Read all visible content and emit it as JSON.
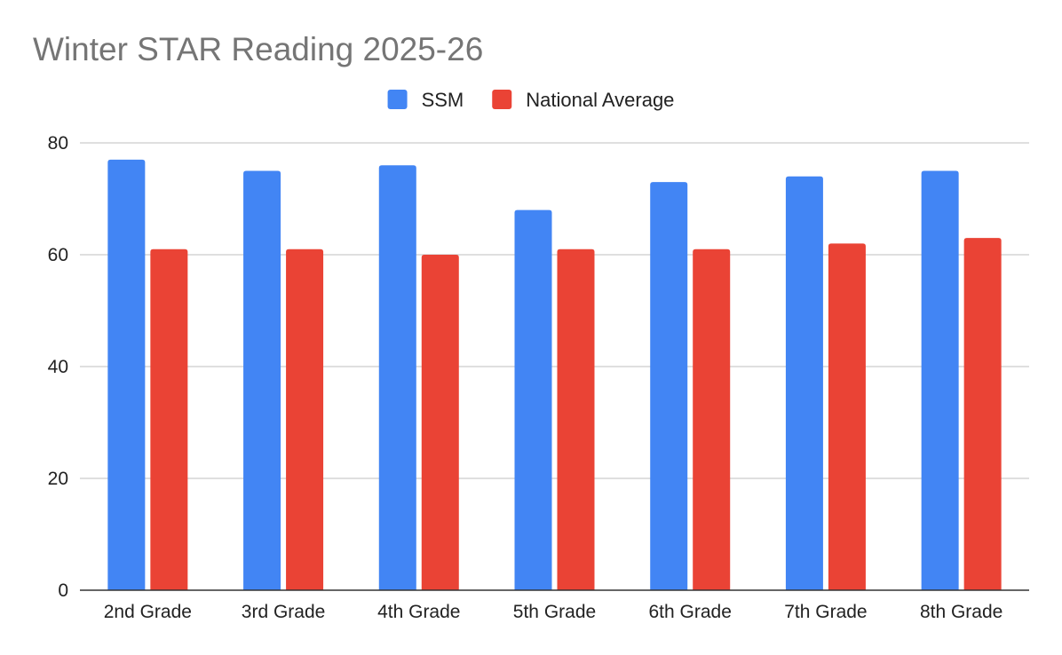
{
  "chart_data": {
    "type": "bar",
    "title": "Winter STAR Reading 2025-26",
    "xlabel": "",
    "ylabel": "",
    "categories": [
      "2nd Grade",
      "3rd Grade",
      "4th Grade",
      "5th Grade",
      "6th Grade",
      "7th Grade",
      "8th Grade"
    ],
    "series": [
      {
        "name": "SSM",
        "color": "#4285f4",
        "values": [
          77,
          75,
          76,
          68,
          73,
          74,
          75
        ]
      },
      {
        "name": "National Average",
        "color": "#ea4335",
        "values": [
          61,
          61,
          60,
          61,
          61,
          62,
          63
        ]
      }
    ],
    "ylim": [
      0,
      80
    ],
    "yticks": [
      0,
      20,
      40,
      60,
      80
    ],
    "grid": true,
    "legend": "top-center"
  }
}
